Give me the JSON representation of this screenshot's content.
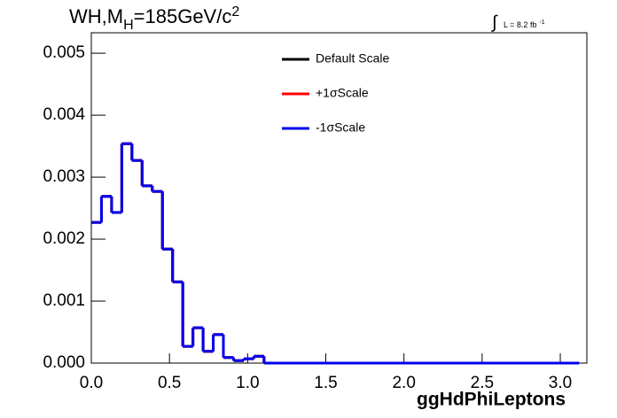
{
  "chart_data": {
    "type": "histogram",
    "title": {
      "main": "WH,M",
      "sub": "H",
      "rest": "=185GeV/c",
      "sup": "2"
    },
    "lumi": {
      "main": "L = 8.2 fb",
      "sup": "-1"
    },
    "x_label": "ggHdPhiLeptons",
    "bins": [
      0,
      0.065,
      0.13,
      0.195,
      0.26,
      0.325,
      0.39,
      0.455,
      0.52,
      0.585,
      0.65,
      0.715,
      0.78,
      0.845,
      0.91,
      0.975,
      1.04,
      1.105,
      1.17,
      1.235,
      1.3,
      1.365,
      1.43,
      1.495,
      1.56,
      1.625,
      1.69,
      1.755,
      1.82,
      1.885,
      1.95,
      2.015,
      2.08,
      2.145,
      2.21,
      2.275,
      2.34,
      2.405,
      2.47,
      2.535,
      2.6,
      2.665,
      2.73,
      2.795,
      2.86,
      2.925,
      2.99,
      3.055,
      3.12
    ],
    "series": [
      {
        "name": "Default Scale",
        "color": "#000000",
        "values": [
          0.00227,
          0.00269,
          0.00243,
          0.00354,
          0.00327,
          0.00286,
          0.00277,
          0.00184,
          0.00131,
          0.00027,
          0.00057,
          0.00019,
          0.00046,
          9e-05,
          4e-05,
          7e-05,
          0.00011,
          0,
          0,
          0,
          0,
          0,
          0,
          0,
          0,
          0,
          0,
          0,
          0,
          0,
          0,
          0,
          0,
          0,
          0,
          0,
          0,
          0,
          0,
          0,
          0,
          0,
          0,
          0,
          0,
          0,
          0,
          0
        ]
      },
      {
        "name": "+1σScale",
        "color": "#ff0000",
        "values": [
          0.00227,
          0.00269,
          0.00243,
          0.00354,
          0.00327,
          0.00286,
          0.00277,
          0.00184,
          0.00131,
          0.00027,
          0.00057,
          0.00019,
          0.00046,
          9e-05,
          4e-05,
          7e-05,
          0.00011,
          0,
          0,
          0,
          0,
          0,
          0,
          0,
          0,
          0,
          0,
          0,
          0,
          0,
          0,
          0,
          0,
          0,
          0,
          0,
          0,
          0,
          0,
          0,
          0,
          0,
          0,
          0,
          0,
          0,
          0,
          0
        ]
      },
      {
        "name": "-1σScale",
        "color": "#0000ee",
        "values": [
          0.00227,
          0.00269,
          0.00243,
          0.00354,
          0.00327,
          0.00286,
          0.00277,
          0.00184,
          0.00131,
          0.00027,
          0.00057,
          0.00019,
          0.00046,
          9e-05,
          4e-05,
          7e-05,
          0.00011,
          0,
          0,
          0,
          0,
          0,
          0,
          0,
          0,
          0,
          0,
          0,
          0,
          0,
          0,
          0,
          0,
          0,
          0,
          0,
          0,
          0,
          0,
          0,
          0,
          0,
          0,
          0,
          0,
          0,
          0,
          0
        ]
      }
    ],
    "xlim": [
      0,
      3.17
    ],
    "ylim": [
      0,
      0.00533
    ],
    "xticks": [
      {
        "value": 0,
        "label": "0.0"
      },
      0.5,
      {
        "value": 1,
        "label": "1.0"
      },
      1.5,
      {
        "value": 2,
        "label": "2.0"
      },
      2.5,
      {
        "value": 3,
        "label": "3.0"
      }
    ],
    "yticks": [
      {
        "value": 0,
        "label": "0.000"
      },
      {
        "value": 0.001,
        "label": "0.001"
      },
      {
        "value": 0.002,
        "label": "0.002"
      },
      {
        "value": 0.003,
        "label": "0.003"
      },
      {
        "value": 0.004,
        "label": "0.004"
      },
      {
        "value": 0.005,
        "label": "0.005"
      }
    ],
    "legend": "top-center"
  }
}
